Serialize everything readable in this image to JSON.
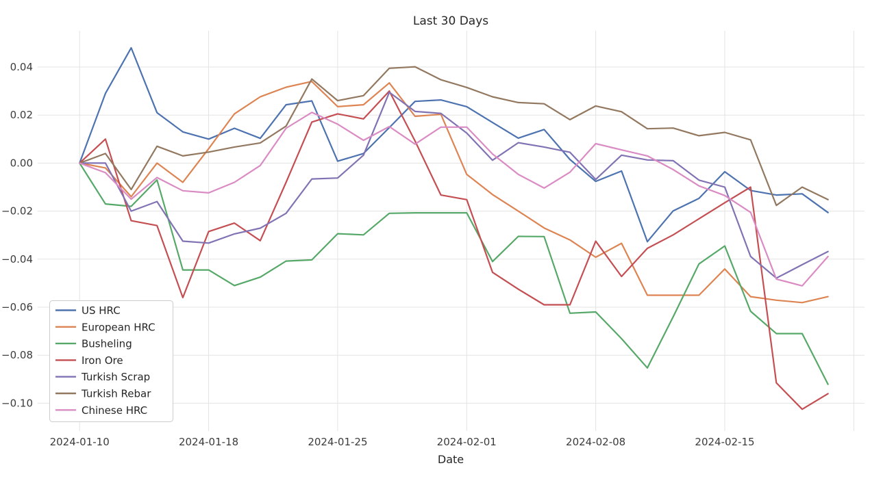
{
  "chart_data": {
    "type": "line",
    "title": "Last 30 Days",
    "xlabel": "Date",
    "ylabel": "",
    "grid": true,
    "legend_position": "lower left",
    "n_points": 30,
    "x_tick_indices": [
      0,
      5,
      10,
      15,
      20,
      25
    ],
    "x_tick_labels": [
      "2024-01-10",
      "2024-01-18",
      "2024-01-25",
      "2024-02-01",
      "2024-02-08",
      "2024-02-15"
    ],
    "y_ticks": [
      0.04,
      0.02,
      0.0,
      -0.02,
      -0.04,
      -0.06,
      -0.08,
      -0.1
    ],
    "y_tick_labels": [
      "0.04",
      "0.02",
      "0.00",
      "−0.02",
      "−0.04",
      "−0.06",
      "−0.08",
      "−0.10"
    ],
    "ylim": [
      -0.1117,
      0.0551
    ],
    "series": [
      {
        "name": "US HRC",
        "color": "#4C72B0",
        "values": [
          0.0,
          0.029,
          0.048,
          0.021,
          0.013,
          0.01,
          0.0145,
          0.0103,
          0.0243,
          0.0259,
          0.0008,
          0.004,
          0.0148,
          0.0257,
          0.0263,
          0.0235,
          0.0169,
          0.0104,
          0.014,
          0.0015,
          -0.0076,
          -0.0033,
          -0.0327,
          -0.0199,
          -0.0147,
          -0.0036,
          -0.0114,
          -0.0133,
          -0.0128,
          -0.0206
        ]
      },
      {
        "name": "European HRC",
        "color": "#DD8452",
        "values": [
          0.0,
          -0.002,
          -0.014,
          0.0,
          -0.008,
          0.006,
          0.0205,
          0.0276,
          0.0316,
          0.034,
          0.0235,
          0.0243,
          0.0334,
          0.0195,
          0.0203,
          -0.0047,
          -0.0131,
          -0.02,
          -0.027,
          -0.032,
          -0.0392,
          -0.0334,
          -0.055,
          -0.055,
          -0.055,
          -0.0441,
          -0.0556,
          -0.0571,
          -0.0581,
          -0.0556
        ]
      },
      {
        "name": "Busheling",
        "color": "#55A868",
        "values": [
          0.0,
          -0.017,
          -0.018,
          -0.007,
          -0.0445,
          -0.0445,
          -0.051,
          -0.0475,
          -0.0408,
          -0.0403,
          -0.0294,
          -0.0299,
          -0.0209,
          -0.0207,
          -0.0207,
          -0.0207,
          -0.041,
          -0.0305,
          -0.0306,
          -0.0625,
          -0.062,
          -0.0731,
          -0.0853,
          -0.064,
          -0.042,
          -0.0345,
          -0.0617,
          -0.071,
          -0.071,
          -0.0921
        ]
      },
      {
        "name": "Iron Ore",
        "color": "#C44E52",
        "values": [
          0.0,
          0.01,
          -0.024,
          -0.026,
          -0.056,
          -0.0285,
          -0.025,
          -0.0323,
          -0.008,
          0.0171,
          0.0205,
          0.0184,
          0.03,
          0.0092,
          -0.0133,
          -0.0152,
          -0.0455,
          -0.0525,
          -0.059,
          -0.059,
          -0.0325,
          -0.0472,
          -0.0355,
          -0.0299,
          -0.0232,
          -0.0165,
          -0.01,
          -0.0915,
          -0.1025,
          -0.096
        ]
      },
      {
        "name": "Turkish Scrap",
        "color": "#8172B3",
        "values": [
          0.0,
          0.0,
          -0.02,
          -0.016,
          -0.0325,
          -0.0333,
          -0.0295,
          -0.0271,
          -0.0209,
          -0.0066,
          -0.0062,
          0.0033,
          0.0295,
          0.0215,
          0.0207,
          0.0125,
          0.0012,
          0.0085,
          0.0067,
          0.0045,
          -0.0068,
          0.0033,
          0.0013,
          0.001,
          -0.0071,
          -0.01,
          -0.0389,
          -0.0479,
          -0.0423,
          -0.0368
        ]
      },
      {
        "name": "Turkish Rebar",
        "color": "#937860",
        "values": [
          0.0,
          0.004,
          -0.011,
          0.007,
          0.003,
          0.0046,
          0.0067,
          0.0084,
          0.0154,
          0.035,
          0.026,
          0.0281,
          0.0395,
          0.0401,
          0.0347,
          0.0315,
          0.0276,
          0.0252,
          0.0247,
          0.0181,
          0.0238,
          0.0214,
          0.0143,
          0.0146,
          0.0114,
          0.0128,
          0.0097,
          -0.0176,
          -0.01,
          -0.0152
        ]
      },
      {
        "name": "Chinese HRC",
        "color": "#DA8BC3",
        "values": [
          0.0,
          -0.004,
          -0.015,
          -0.006,
          -0.0115,
          -0.0124,
          -0.008,
          -0.001,
          0.0145,
          0.0211,
          0.0162,
          0.0095,
          0.0152,
          0.0079,
          0.015,
          0.015,
          0.0038,
          -0.0047,
          -0.0104,
          -0.0038,
          0.0081,
          0.0055,
          0.003,
          -0.0027,
          -0.0095,
          -0.0135,
          -0.0205,
          -0.0483,
          -0.0511,
          -0.0389
        ]
      }
    ]
  }
}
